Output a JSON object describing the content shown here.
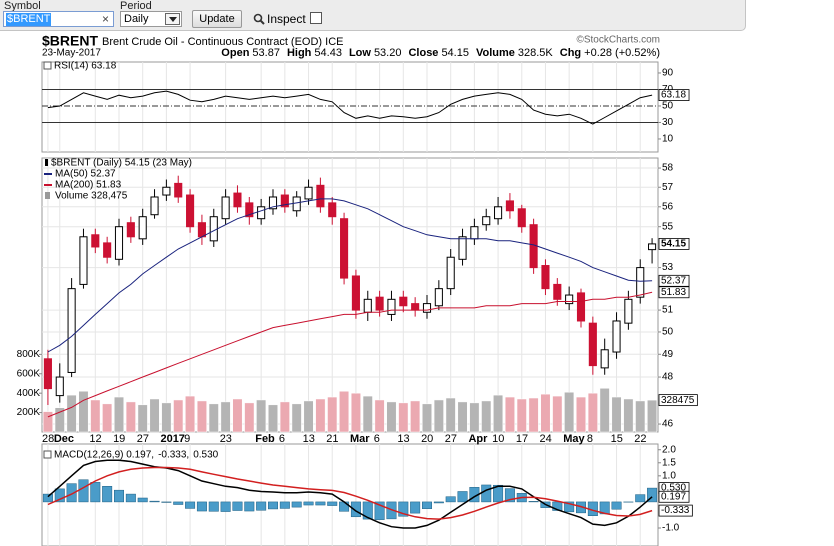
{
  "toolbar": {
    "symbol_label": "Symbol",
    "symbol_value": "$BRENT",
    "clear": "×",
    "period_label": "Period",
    "period_value": "Daily",
    "update": "Update",
    "inspect": "Inspect"
  },
  "header": {
    "symbol": "$BRENT",
    "name": "Brent Crude Oil - Continuous Contract (EOD) ICE",
    "date": "23-May-2017",
    "quote": [
      {
        "label": "Open",
        "value": "53.87"
      },
      {
        "label": "High",
        "value": "54.43"
      },
      {
        "label": "Low",
        "value": "53.20"
      },
      {
        "label": "Close",
        "value": "54.15"
      },
      {
        "label": "Volume",
        "value": "328.5K"
      },
      {
        "label": "Chg",
        "value": "+0.28 (+0.52%)"
      }
    ],
    "credit": "©StockCharts.com"
  },
  "chart_data": [
    {
      "type": "line",
      "ylim": [
        -5.8,
        103.3
      ],
      "yticks": [
        10,
        30,
        50,
        70,
        90
      ],
      "reference_lines": [
        {
          "value": 70,
          "style": "solid"
        },
        {
          "value": 50,
          "style": "dashdot"
        },
        {
          "value": 30,
          "style": "solid"
        }
      ],
      "series": [
        {
          "name": "RSI(14) 63.18",
          "color": "#000000",
          "values": [
            48,
            50,
            58,
            66,
            62,
            58,
            63,
            60,
            62,
            66,
            68,
            64,
            57,
            55,
            58,
            62,
            60,
            58,
            60,
            62,
            60,
            62,
            64,
            58,
            55,
            42,
            35,
            38,
            35,
            38,
            37,
            35,
            37,
            42,
            52,
            58,
            62,
            64,
            66,
            64,
            58,
            45,
            40,
            38,
            40,
            35,
            28,
            36,
            44,
            52,
            60,
            63.18
          ]
        }
      ]
    },
    {
      "type": "candlestick",
      "log_scale": true,
      "grid": true,
      "ylim": [
        45.67,
        58.53
      ],
      "yticks": [
        46,
        48,
        49,
        50,
        51,
        53,
        55,
        56,
        57,
        58
      ],
      "categories": [
        "28",
        "Dec",
        null,
        null,
        "12",
        null,
        "19",
        null,
        "27",
        null,
        "2017",
        null,
        "9",
        null,
        null,
        "23",
        null,
        null,
        "Feb",
        null,
        "6",
        null,
        "13",
        null,
        "21",
        null,
        "Mar",
        null,
        "6",
        null,
        "13",
        null,
        "20",
        null,
        "27",
        null,
        "Apr",
        null,
        "10",
        null,
        "17",
        null,
        "24",
        null,
        "May",
        null,
        "8",
        null,
        "15",
        null,
        "22",
        null
      ],
      "ohlc": {
        "name": "$BRENT (Daily) 54.15 (23 May)",
        "up_color": "#000000",
        "down_color": "#cc1133",
        "open": [
          48.8,
          47.2,
          48.2,
          52.2,
          54.6,
          54.2,
          53.4,
          55.2,
          54.4,
          55.6,
          56.6,
          57.2,
          56.6,
          55.2,
          54.3,
          55.4,
          56.7,
          56.2,
          55.4,
          55.9,
          56.6,
          55.8,
          56.4,
          57.1,
          56.2,
          55.4,
          52.6,
          50.9,
          51.6,
          50.8,
          51.6,
          51.3,
          50.9,
          51.2,
          52.0,
          53.4,
          54.4,
          55.1,
          55.4,
          56.3,
          55.9,
          55.1,
          53.1,
          52.2,
          51.3,
          51.8,
          50.4,
          48.4,
          49.1,
          50.4,
          51.6,
          53.87
        ],
        "high": [
          49.2,
          48.6,
          52.5,
          54.9,
          54.9,
          54.5,
          55.4,
          55.5,
          55.9,
          56.9,
          57.4,
          57.6,
          56.9,
          55.6,
          55.9,
          56.9,
          57.1,
          56.5,
          56.4,
          56.9,
          56.9,
          56.8,
          57.4,
          57.5,
          56.5,
          55.7,
          52.9,
          51.9,
          51.9,
          51.9,
          51.9,
          51.6,
          51.7,
          52.4,
          53.9,
          54.9,
          55.4,
          55.9,
          56.5,
          56.7,
          56.1,
          55.4,
          53.4,
          52.5,
          52.1,
          52.0,
          50.7,
          49.7,
          50.9,
          51.9,
          53.4,
          54.43
        ],
        "low": [
          46.8,
          46.9,
          48.0,
          52.0,
          53.7,
          53.2,
          53.1,
          54.2,
          54.1,
          55.4,
          56.3,
          56.2,
          54.7,
          54.1,
          54.0,
          55.1,
          55.7,
          55.1,
          55.1,
          55.6,
          55.7,
          55.5,
          56.1,
          55.7,
          55.1,
          52.2,
          50.6,
          50.5,
          50.7,
          50.5,
          50.9,
          50.7,
          50.6,
          51.0,
          51.7,
          53.1,
          54.1,
          54.8,
          55.1,
          55.4,
          54.7,
          52.7,
          51.7,
          51.2,
          51.0,
          50.2,
          48.1,
          48.1,
          48.8,
          50.1,
          51.3,
          53.2
        ],
        "close": [
          47.5,
          48.0,
          52.0,
          54.5,
          54.0,
          53.5,
          55.0,
          54.5,
          55.5,
          56.5,
          57.0,
          56.5,
          55.0,
          54.5,
          55.5,
          56.5,
          56.0,
          55.5,
          56.0,
          56.5,
          56.0,
          56.5,
          57.0,
          56.0,
          55.5,
          52.5,
          51.0,
          51.5,
          51.0,
          51.5,
          51.2,
          51.0,
          51.3,
          52.0,
          53.5,
          54.5,
          55.0,
          55.5,
          56.0,
          55.8,
          55.0,
          53.0,
          52.0,
          51.5,
          51.7,
          50.5,
          48.5,
          49.2,
          50.5,
          51.5,
          53.0,
          54.15
        ]
      },
      "series": [
        {
          "name": "MA(50) 52.37",
          "color": "#1a237e",
          "values": [
            49.1,
            49.4,
            49.8,
            50.3,
            50.8,
            51.3,
            51.8,
            52.2,
            52.7,
            53.1,
            53.5,
            53.9,
            54.2,
            54.5,
            54.8,
            55.1,
            55.4,
            55.6,
            55.8,
            56.0,
            56.1,
            56.2,
            56.3,
            56.4,
            56.4,
            56.3,
            56.1,
            55.9,
            55.6,
            55.3,
            55.0,
            54.8,
            54.6,
            54.5,
            54.4,
            54.4,
            54.4,
            54.4,
            54.3,
            54.3,
            54.2,
            54.1,
            53.9,
            53.7,
            53.5,
            53.3,
            53.0,
            52.8,
            52.6,
            52.4,
            52.35,
            52.37
          ]
        },
        {
          "name": "MA(200) 51.83",
          "color": "#c8102e",
          "values": [
            46.3,
            46.5,
            46.7,
            47.0,
            47.2,
            47.4,
            47.6,
            47.8,
            48.0,
            48.2,
            48.4,
            48.6,
            48.8,
            49.0,
            49.2,
            49.4,
            49.6,
            49.8,
            50.0,
            50.2,
            50.3,
            50.4,
            50.5,
            50.6,
            50.7,
            50.8,
            50.8,
            50.9,
            50.9,
            51.0,
            51.0,
            51.0,
            51.0,
            51.1,
            51.1,
            51.1,
            51.1,
            51.2,
            51.2,
            51.2,
            51.3,
            51.3,
            51.3,
            51.4,
            51.4,
            51.4,
            51.5,
            51.5,
            51.6,
            51.6,
            51.7,
            51.83
          ]
        }
      ]
    },
    {
      "type": "bar",
      "yaxis": "left",
      "ylim": [
        0,
        2823000
      ],
      "yticks": [
        {
          "value": 200000,
          "label": "200K"
        },
        {
          "value": 400000,
          "label": "400K"
        },
        {
          "value": 600000,
          "label": "600K"
        },
        {
          "value": 800000,
          "label": "800K"
        }
      ],
      "up_color": "#b4b4b4",
      "down_color": "#eba9b1",
      "series": [
        {
          "name": "Volume 328,475",
          "color": "#999999",
          "values": [
            210000,
            250000,
            380000,
            420000,
            330000,
            290000,
            360000,
            310000,
            280000,
            340000,
            300000,
            330000,
            370000,
            320000,
            290000,
            310000,
            340000,
            300000,
            330000,
            280000,
            310000,
            290000,
            320000,
            340000,
            360000,
            420000,
            400000,
            370000,
            330000,
            310000,
            300000,
            320000,
            290000,
            330000,
            350000,
            310000,
            300000,
            320000,
            380000,
            360000,
            340000,
            350000,
            390000,
            370000,
            410000,
            360000,
            400000,
            450000,
            360000,
            340000,
            320000,
            328475
          ]
        }
      ]
    },
    {
      "type": "macd",
      "ylim": [
        -1.69,
        2.22
      ],
      "yticks": [
        {
          "value": -1,
          "label": "-1.0"
        },
        {
          "value": 1,
          "label": "1.0"
        },
        {
          "value": 1.5,
          "label": "1.5"
        },
        {
          "value": 2,
          "label": "2.0"
        }
      ],
      "series": [
        {
          "name": "MACD(12,26,9) 0.197,",
          "style": "line",
          "color": "#000000",
          "values": [
            0.2,
            0.6,
            1.0,
            1.4,
            1.55,
            1.6,
            1.6,
            1.55,
            1.45,
            1.35,
            1.3,
            1.2,
            1.0,
            0.8,
            0.7,
            0.6,
            0.55,
            0.45,
            0.4,
            0.38,
            0.35,
            0.35,
            0.38,
            0.35,
            0.3,
            0.0,
            -0.35,
            -0.6,
            -0.8,
            -0.95,
            -1.0,
            -1.0,
            -0.9,
            -0.7,
            -0.4,
            -0.1,
            0.2,
            0.45,
            0.6,
            0.6,
            0.5,
            0.2,
            -0.1,
            -0.3,
            -0.45,
            -0.6,
            -0.85,
            -0.9,
            -0.8,
            -0.55,
            -0.2,
            0.197
          ]
        },
        {
          "name": "-0.333,",
          "style": "line",
          "color": "#d21f1f",
          "values": [
            -0.1,
            0.1,
            0.3,
            0.55,
            0.8,
            1.0,
            1.15,
            1.25,
            1.3,
            1.32,
            1.32,
            1.3,
            1.25,
            1.15,
            1.06,
            0.97,
            0.88,
            0.8,
            0.72,
            0.65,
            0.6,
            0.55,
            0.5,
            0.47,
            0.44,
            0.36,
            0.22,
            0.06,
            -0.12,
            -0.3,
            -0.45,
            -0.57,
            -0.64,
            -0.66,
            -0.6,
            -0.5,
            -0.36,
            -0.2,
            -0.04,
            0.09,
            0.17,
            0.18,
            0.12,
            0.03,
            -0.07,
            -0.18,
            -0.32,
            -0.44,
            -0.52,
            -0.54,
            -0.48,
            -0.333
          ]
        },
        {
          "name": "0.530",
          "style": "bar",
          "color": "#4a9cc9",
          "last_label": "0.530",
          "values": [
            0.3,
            0.5,
            0.7,
            0.85,
            0.75,
            0.6,
            0.45,
            0.3,
            0.15,
            0.03,
            -0.02,
            -0.1,
            -0.25,
            -0.35,
            -0.36,
            -0.37,
            -0.33,
            -0.35,
            -0.32,
            -0.27,
            -0.25,
            -0.2,
            -0.12,
            -0.12,
            -0.14,
            -0.36,
            -0.57,
            -0.66,
            -0.68,
            -0.65,
            -0.55,
            -0.43,
            -0.26,
            -0.04,
            0.2,
            0.4,
            0.56,
            0.65,
            0.64,
            0.51,
            0.33,
            0.02,
            -0.22,
            -0.33,
            -0.38,
            -0.42,
            -0.53,
            -0.46,
            -0.28,
            -0.01,
            0.28,
            0.53
          ]
        }
      ]
    }
  ]
}
